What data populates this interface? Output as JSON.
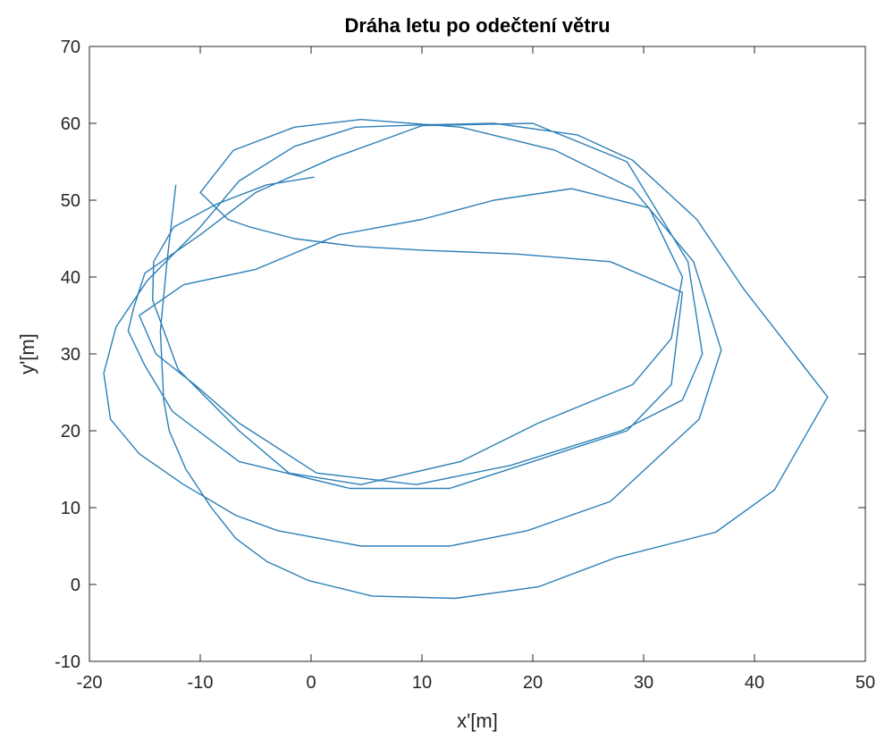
{
  "chart_data": {
    "type": "line",
    "title": "Dráha letu po odečtení větru",
    "xlabel": "x'[m]",
    "ylabel": "y'[m]",
    "xlim": [
      -20,
      50
    ],
    "ylim": [
      -10,
      70
    ],
    "xticks": [
      "-20",
      "-10",
      "0",
      "10",
      "20",
      "30",
      "40",
      "50"
    ],
    "yticks": [
      "-10",
      "0",
      "10",
      "20",
      "30",
      "40",
      "50",
      "60",
      "70"
    ],
    "grid": false,
    "legend": "none",
    "series": [
      {
        "color": "#2c7fb8",
        "x": [
          -12.2,
          -13.0,
          -13.6,
          -13.3,
          -12.8,
          -11.3,
          -9.0,
          -6.8,
          -4.0,
          -0.2,
          5.5,
          13.0,
          20.5,
          27.5,
          36.5,
          41.8,
          46.6,
          39.0,
          34.8,
          29.0,
          24.0,
          16.5,
          10.0,
          4.0,
          -1.5,
          -6.5,
          -10.0,
          -14.8,
          -17.6,
          -18.7,
          -18.1,
          -15.5,
          -11.5,
          -6.8,
          -3.0,
          4.5,
          12.5,
          19.5,
          27.0,
          35.0,
          37.0,
          34.5,
          29.0,
          22.0,
          13.5,
          4.5,
          -1.5,
          -7.0,
          -10.0,
          -7.5,
          -5.5,
          -1.5,
          4.0,
          10.0,
          18.5,
          27.0,
          33.5,
          32.5,
          28.5,
          20.0,
          12.5,
          3.5,
          -6.5,
          -12.5,
          -15.0,
          -16.5,
          -16.0,
          -15.0,
          -10.0,
          -5.0,
          2.0,
          10.0,
          20.0,
          28.5,
          34.0,
          35.3,
          33.5,
          28.0,
          18.0,
          9.5,
          0.5,
          -6.5,
          -10.5,
          -14.0,
          -15.5,
          -11.5,
          -5.0,
          2.5,
          10.0,
          16.5,
          23.5,
          30.5,
          33.5,
          32.5,
          29.0,
          20.5,
          13.5,
          4.5,
          -2.0,
          -6.5,
          -12.0,
          -14.3,
          -14.2,
          -12.4,
          -8.5,
          -4.0,
          0.3
        ],
        "y": [
          52.0,
          42.0,
          33.0,
          24.0,
          20.0,
          15.0,
          10.0,
          6.0,
          3.0,
          0.5,
          -1.5,
          -1.8,
          -0.3,
          3.5,
          6.8,
          12.3,
          24.4,
          38.5,
          47.5,
          55.2,
          58.5,
          60.0,
          59.8,
          59.5,
          57.0,
          52.5,
          46.5,
          39.5,
          33.5,
          27.5,
          21.5,
          17.0,
          13.0,
          9.0,
          7.0,
          5.0,
          5.0,
          7.0,
          10.8,
          21.5,
          30.5,
          42.0,
          51.5,
          56.5,
          59.5,
          60.5,
          59.5,
          56.5,
          51.0,
          47.5,
          46.5,
          45.0,
          44.0,
          43.5,
          43.0,
          42.0,
          38.0,
          26.0,
          20.0,
          16.0,
          12.5,
          12.5,
          16.0,
          22.5,
          28.5,
          33.0,
          36.0,
          40.5,
          45.5,
          51.0,
          55.5,
          59.7,
          60.0,
          55.0,
          42.0,
          30.0,
          24.0,
          20.0,
          15.5,
          13.0,
          14.5,
          21.0,
          26.0,
          30.0,
          35.0,
          39.0,
          41.0,
          45.5,
          47.5,
          50.0,
          51.5,
          49.0,
          40.0,
          32.0,
          26.0,
          21.0,
          16.0,
          13.0,
          14.5,
          20.0,
          28.0,
          37.0,
          42.0,
          46.5,
          49.5,
          52.0,
          53.0
        ]
      }
    ]
  }
}
